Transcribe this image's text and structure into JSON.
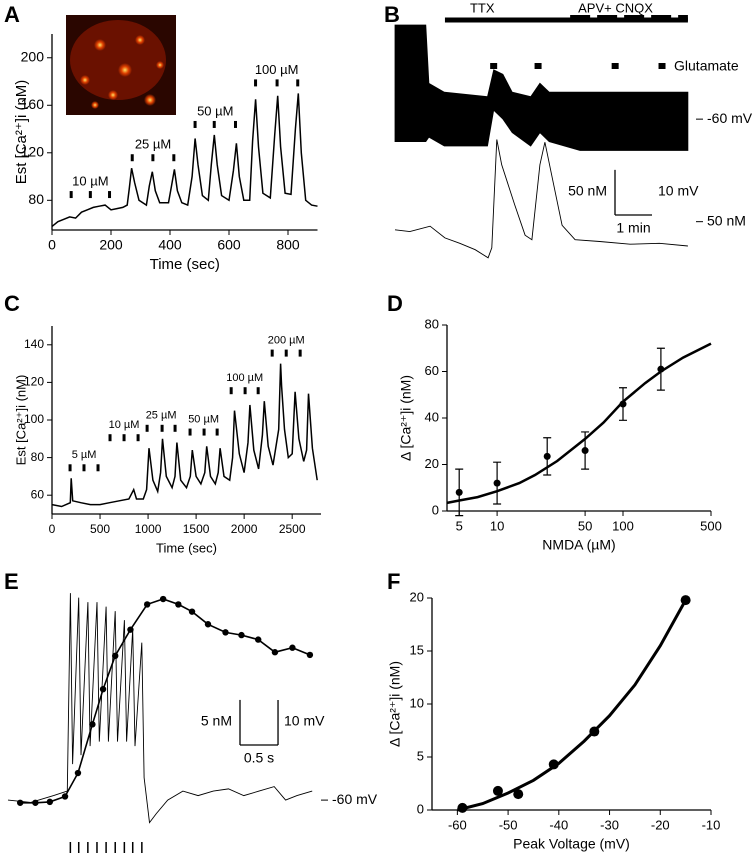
{
  "chart_data": [
    {
      "type": "line",
      "panel": "A",
      "xlabel": "Time (sec)",
      "ylabel": "Est [Ca²⁺]i (nM)",
      "xlim": [
        0,
        900
      ],
      "ylim": [
        55,
        220
      ],
      "xticks": [
        0,
        200,
        400,
        600,
        800
      ],
      "yticks": [
        80,
        120,
        160,
        200
      ],
      "x": [
        0,
        20,
        40,
        60,
        80,
        100,
        120,
        140,
        160,
        180,
        200,
        220,
        240,
        255,
        262,
        270,
        280,
        295,
        320,
        330,
        340,
        350,
        365,
        395,
        405,
        415,
        425,
        440,
        460,
        475,
        485,
        495,
        510,
        530,
        540,
        550,
        560,
        575,
        600,
        615,
        625,
        635,
        650,
        670,
        680,
        690,
        700,
        715,
        740,
        755,
        765,
        775,
        790,
        810,
        825,
        835,
        845,
        860,
        880,
        900
      ],
      "values": [
        58,
        62,
        64,
        66,
        65,
        70,
        72,
        74,
        75,
        76,
        72,
        73,
        74,
        76,
        90,
        107,
        95,
        80,
        76,
        92,
        104,
        88,
        78,
        78,
        92,
        106,
        88,
        78,
        76,
        100,
        132,
        110,
        84,
        80,
        110,
        135,
        110,
        84,
        80,
        105,
        128,
        100,
        80,
        80,
        130,
        165,
        125,
        86,
        82,
        135,
        168,
        125,
        86,
        85,
        140,
        170,
        120,
        80,
        76,
        75
      ],
      "annotations": [
        {
          "label": "10 µM",
          "x": [
            65,
            130,
            195
          ]
        },
        {
          "label": "25 µM",
          "x": [
            272,
            342,
            413
          ]
        },
        {
          "label": "50 µM",
          "x": [
            485,
            550,
            622
          ]
        },
        {
          "label": "100 µM",
          "x": [
            690,
            763,
            833
          ]
        }
      ]
    },
    {
      "type": "trace",
      "panel": "B",
      "xlim": [
        0,
        480
      ],
      "voltage": {
        "x": [
          0,
          50,
          55,
          80,
          150,
          160,
          175,
          190,
          220,
          235,
          250,
          300,
          400,
          475
        ],
        "upper": [
          -39,
          -39,
          -52,
          -54,
          -55,
          -49,
          -50,
          -54,
          -55,
          -52,
          -54,
          -54,
          -54,
          -54
        ],
        "lower": [
          -65,
          -65,
          -64,
          -66,
          -66,
          -58,
          -60,
          -63,
          -66,
          -63,
          -65,
          -67,
          -67,
          -67
        ],
        "ylim": [
          -68,
          -39
        ],
        "reference": {
          "value": -60,
          "label": "-60 mV"
        }
      },
      "calcium": {
        "x": [
          0,
          24,
          57,
          81,
          105,
          130,
          151,
          157,
          165,
          173,
          194,
          211,
          222,
          235,
          243,
          254,
          271,
          292,
          332,
          381,
          429,
          475
        ],
        "values": [
          41,
          39,
          45,
          32,
          26,
          19,
          10,
          21,
          141,
          113,
          69,
          35,
          30,
          113,
          138,
          102,
          46,
          30,
          28,
          25,
          26,
          23
        ],
        "ylim": [
          2,
          146
        ],
        "reference": {
          "value": 50,
          "label": "50 nM"
        }
      },
      "bars": [
        {
          "label": "TTX",
          "x": [
            81,
            475
          ],
          "style": "solid"
        },
        {
          "label": "APV+ CNQX",
          "x": [
            284,
            475
          ],
          "style": "dashed"
        }
      ],
      "stimuli": {
        "label": "Glutamate",
        "x": [
          160,
          232,
          357,
          433
        ]
      },
      "scale": {
        "time": {
          "value": 60,
          "label": "1 min"
        },
        "calcium": {
          "value": 50,
          "label": "50 nM"
        },
        "voltage": {
          "value": 10,
          "label": "10 mV"
        }
      }
    },
    {
      "type": "line",
      "panel": "C",
      "xlabel": "Time (sec)",
      "ylabel": "Est [Ca²⁺]i (nM)",
      "xlim": [
        0,
        2800
      ],
      "ylim": [
        50,
        150
      ],
      "xticks": [
        0,
        500,
        1000,
        1500,
        2000,
        2500
      ],
      "yticks": [
        60,
        80,
        100,
        120,
        140
      ],
      "x": [
        0,
        100,
        190,
        200,
        215,
        300,
        400,
        500,
        600,
        700,
        800,
        850,
        880,
        950,
        985,
        1010,
        1050,
        1100,
        1130,
        1150,
        1190,
        1250,
        1280,
        1300,
        1340,
        1400,
        1440,
        1460,
        1500,
        1550,
        1590,
        1610,
        1650,
        1700,
        1730,
        1750,
        1790,
        1850,
        1880,
        1900,
        1950,
        2000,
        2040,
        2060,
        2100,
        2150,
        2190,
        2210,
        2250,
        2300,
        2360,
        2380,
        2390,
        2420,
        2460,
        2500,
        2530,
        2570,
        2620,
        2650,
        2670,
        2710,
        2760
      ],
      "values": [
        55,
        54,
        56,
        69,
        57,
        56,
        55,
        55,
        56,
        57,
        58,
        63,
        58,
        58,
        63,
        85,
        68,
        62,
        72,
        90,
        70,
        64,
        70,
        88,
        68,
        64,
        70,
        84,
        70,
        66,
        72,
        86,
        70,
        66,
        72,
        85,
        70,
        68,
        80,
        105,
        82,
        72,
        88,
        108,
        84,
        74,
        92,
        110,
        86,
        76,
        95,
        130,
        118,
        95,
        80,
        82,
        115,
        90,
        78,
        84,
        114,
        85,
        68
      ],
      "annotations": [
        {
          "label": "5 µM",
          "x": [
            188,
            333,
            479
          ]
        },
        {
          "label": "10 µM",
          "x": [
            604,
            750,
            896
          ]
        },
        {
          "label": "25 µM",
          "x": [
            990,
            1146,
            1281
          ]
        },
        {
          "label": "50 µM",
          "x": [
            1437,
            1583,
            1719
          ]
        },
        {
          "label": "100 µM",
          "x": [
            1865,
            2010,
            2146
          ]
        },
        {
          "label": "200 µM",
          "x": [
            2292,
            2438,
            2583
          ]
        }
      ]
    },
    {
      "type": "scatter",
      "panel": "D",
      "xlabel": "NMDA (µM)",
      "ylabel": "Δ [Ca²⁺]i (nM)",
      "xlog": true,
      "xlim": [
        4,
        500
      ],
      "ylim": [
        0,
        80
      ],
      "xticks": [
        5,
        10,
        50,
        100,
        500
      ],
      "yticks": [
        0,
        20,
        40,
        60,
        80
      ],
      "points": {
        "x": [
          5,
          10,
          25,
          50,
          100,
          200
        ],
        "values": [
          8,
          12,
          23.5,
          26,
          46,
          61
        ],
        "errors": [
          10,
          9,
          8,
          8,
          7,
          9
        ]
      },
      "fit": {
        "x": [
          4,
          5,
          7,
          10,
          15,
          20,
          30,
          50,
          70,
          100,
          150,
          200,
          300,
          500
        ],
        "values": [
          3.5,
          4.5,
          6,
          8.5,
          12,
          15.5,
          21.5,
          31,
          38,
          47,
          55,
          60,
          66,
          72
        ]
      }
    },
    {
      "type": "trace",
      "panel": "E",
      "xlim": [
        0,
        4.05
      ],
      "voltage": {
        "x": [
          0,
          0.3,
          0.6,
          0.78,
          0.82,
          0.85,
          0.93,
          0.96,
          1.05,
          1.08,
          1.17,
          1.2,
          1.29,
          1.32,
          1.41,
          1.44,
          1.53,
          1.56,
          1.64,
          1.67,
          1.76,
          1.79,
          1.86,
          1.95,
          2.1,
          2.3,
          2.5,
          2.7,
          2.9,
          3.1,
          3.3,
          3.5,
          3.65,
          3.8,
          4.0
        ],
        "values": [
          -60,
          -60.5,
          -59,
          -58,
          -14,
          -52,
          -15,
          -50,
          -16,
          -48,
          -16,
          -47,
          -17,
          -47,
          -18,
          -47,
          -20,
          -47,
          -22,
          -48,
          -25,
          -55,
          -65,
          -63,
          -60,
          -58,
          -59,
          -58,
          -57.5,
          -59,
          -58,
          -57,
          -60,
          -59,
          -58
        ],
        "ylim": [
          -62.2,
          -13.3
        ],
        "reference": {
          "value": -60,
          "label": "-60 mV"
        }
      },
      "calcium": {
        "x": [
          0.16,
          0.36,
          0.55,
          0.75,
          0.92,
          1.11,
          1.25,
          1.41,
          1.61,
          1.83,
          2.04,
          2.24,
          2.42,
          2.63,
          2.86,
          3.07,
          3.29,
          3.51,
          3.74,
          3.97
        ],
        "values": [
          0,
          0,
          0.1,
          0.7,
          3.3,
          8.7,
          12.6,
          16.3,
          19.2,
          22,
          22.6,
          22,
          21.2,
          19.8,
          18.9,
          18.6,
          18.1,
          16.7,
          17.2,
          16.4
        ],
        "ylim": [
          -0.8,
          23.6
        ],
        "markers": true
      },
      "stimuli": {
        "x": [
          0.82,
          0.93,
          1.05,
          1.17,
          1.29,
          1.41,
          1.53,
          1.64,
          1.76
        ]
      },
      "scale": {
        "time": {
          "value": 0.5,
          "label": "0.5 s"
        },
        "calcium": {
          "value": 5,
          "label": "5 nM"
        },
        "voltage": {
          "value": 10,
          "label": "10 mV"
        }
      }
    },
    {
      "type": "scatter",
      "panel": "F",
      "xlabel": "Peak Voltage (mV)",
      "ylabel": "Δ [Ca²⁺]i (nM)",
      "xlim": [
        -65,
        -10
      ],
      "ylim": [
        0,
        20
      ],
      "xticks": [
        -60,
        -50,
        -40,
        -30,
        -20,
        -10
      ],
      "yticks": [
        0,
        5,
        10,
        15,
        20
      ],
      "points": {
        "x": [
          -59,
          -52,
          -48,
          -41,
          -33,
          -15
        ],
        "values": [
          0.2,
          1.8,
          1.5,
          4.3,
          7.4,
          19.8
        ]
      },
      "fit": {
        "x": [
          -60,
          -55,
          -50,
          -45,
          -40,
          -35,
          -30,
          -25,
          -20,
          -15
        ],
        "values": [
          0,
          0.6,
          1.6,
          2.8,
          4.4,
          6.5,
          8.9,
          11.8,
          15.5,
          19.8
        ]
      }
    }
  ]
}
